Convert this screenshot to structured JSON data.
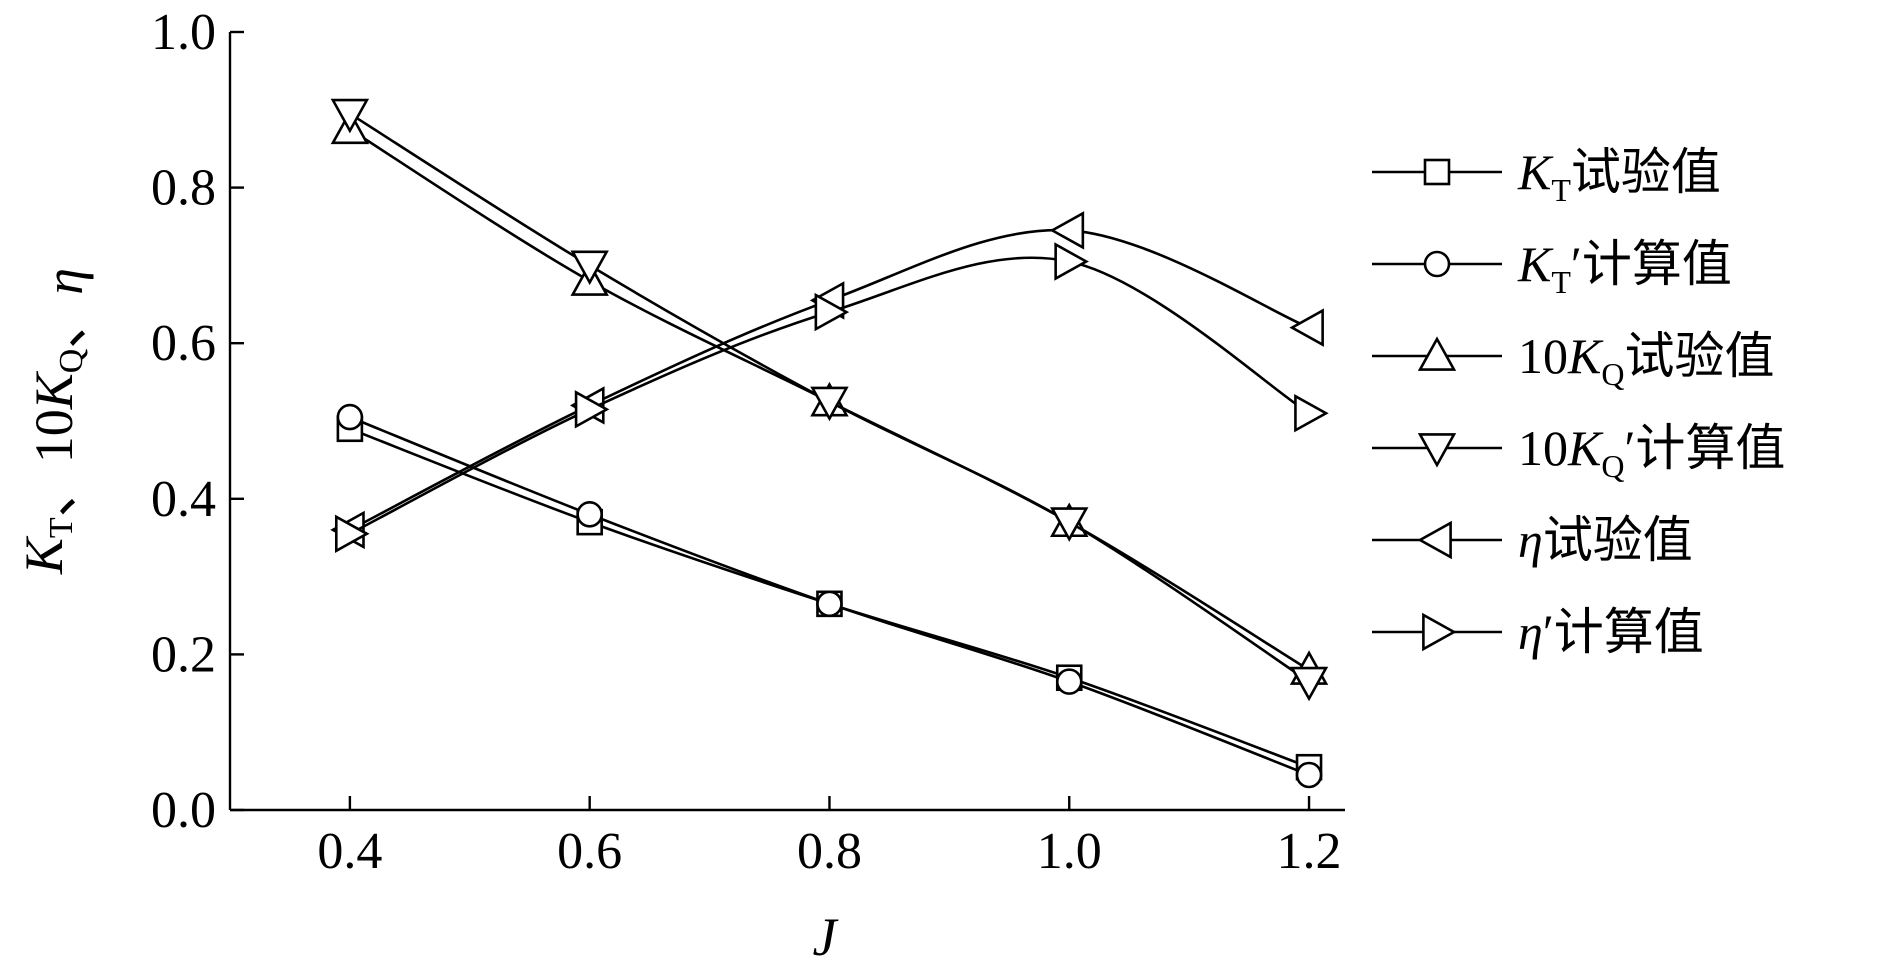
{
  "chart_data": {
    "type": "line",
    "xlabel": "J",
    "ylabel": "K_T、10K_Q、η",
    "xlim": [
      0.3,
      1.23
    ],
    "ylim": [
      0.0,
      1.0
    ],
    "xticks": [
      "0.4",
      "0.6",
      "0.8",
      "1.0",
      "1.2"
    ],
    "yticks": [
      "0.0",
      "0.2",
      "0.4",
      "0.6",
      "0.8",
      "1.0"
    ],
    "grid": false,
    "legend_position": "right",
    "x": [
      0.4,
      0.6,
      0.8,
      1.0,
      1.2
    ],
    "series": [
      {
        "name": "K_T试验值",
        "legend_prefix": "K",
        "legend_sub": "T",
        "legend_prime": "",
        "legend_suffix": "试验值",
        "marker": "square",
        "values": [
          0.49,
          0.37,
          0.265,
          0.17,
          0.055
        ]
      },
      {
        "name": "K_T′计算值",
        "legend_prefix": "K",
        "legend_sub": "T",
        "legend_prime": "′",
        "legend_suffix": "计算值",
        "marker": "circle",
        "values": [
          0.505,
          0.38,
          0.265,
          0.165,
          0.045
        ]
      },
      {
        "name": "10K_Q试验值",
        "legend_prefix": "10K",
        "legend_sub": "Q",
        "legend_prime": "",
        "legend_suffix": "试验值",
        "marker": "triangle-up",
        "values": [
          0.875,
          0.68,
          0.525,
          0.37,
          0.18
        ]
      },
      {
        "name": "10K_Q′计算值",
        "legend_prefix": "10K",
        "legend_sub": "Q",
        "legend_prime": "′",
        "legend_suffix": "计算值",
        "marker": "triangle-down",
        "values": [
          0.895,
          0.7,
          0.525,
          0.37,
          0.165
        ]
      },
      {
        "name": "η试验值",
        "legend_prefix": "η",
        "legend_sub": "",
        "legend_prime": "",
        "legend_suffix": "试验值",
        "marker": "triangle-left",
        "values": [
          0.36,
          0.52,
          0.655,
          0.745,
          0.62
        ]
      },
      {
        "name": "η′计算值",
        "legend_prefix": "η",
        "legend_sub": "",
        "legend_prime": "′",
        "legend_suffix": "计算值",
        "marker": "triangle-right",
        "values": [
          0.355,
          0.515,
          0.64,
          0.705,
          0.51
        ]
      }
    ]
  }
}
